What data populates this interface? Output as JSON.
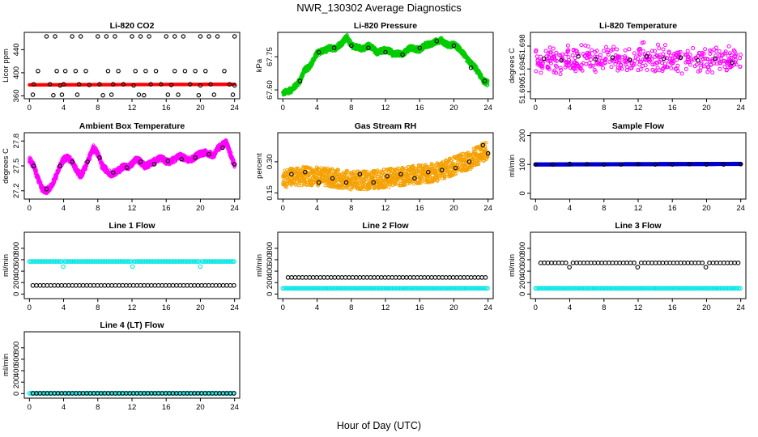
{
  "figure": {
    "title": "NWR_130302  Average Diagnostics",
    "xlabel": "Hour of Day (UTC)"
  },
  "chart_data": [
    {
      "id": "co2",
      "type": "scatter",
      "title": "Li-820 CO2",
      "ylabel": "Licor ppm",
      "x_ticks": [
        0,
        4,
        8,
        12,
        16,
        20,
        24
      ],
      "y_ticks": [
        360,
        400,
        440
      ],
      "xlim": [
        -0.6,
        24.6
      ],
      "ylim": [
        355,
        470
      ],
      "series": [
        {
          "kind": "band",
          "color": "#ff0000",
          "x": [
            0,
            24
          ],
          "y": [
            379,
            380
          ],
          "thickness": 3
        },
        {
          "kind": "points",
          "marker": "circle",
          "color": "#000000",
          "x": [
            2,
            3,
            5,
            6,
            8,
            9,
            10,
            12,
            13,
            14,
            16,
            17,
            18,
            20,
            21,
            22,
            24
          ],
          "y": [
            463,
            463,
            463,
            463,
            463,
            463,
            463,
            463,
            463,
            463,
            463,
            463,
            463,
            463,
            463,
            463,
            463
          ]
        },
        {
          "kind": "points",
          "marker": "circle",
          "color": "#000000",
          "x": [
            1,
            3.2,
            4.2,
            5.4,
            6.6,
            9.2,
            10.4,
            12.4,
            13.6,
            14.8,
            17,
            18.2,
            19.4,
            20.6,
            22.8
          ],
          "y": [
            403,
            403,
            403,
            403,
            403,
            403,
            403,
            403,
            403,
            403,
            403,
            403,
            403,
            403,
            403
          ]
        },
        {
          "kind": "points",
          "marker": "circle",
          "color": "#000000",
          "x": [
            0.5,
            2.4,
            3.6,
            4,
            5.8,
            7,
            8.2,
            9.8,
            11,
            12.2,
            14.2,
            15.4,
            16.6,
            18.8,
            20,
            21.2,
            23.4,
            24
          ],
          "y": [
            380,
            380,
            378,
            380,
            380,
            379,
            380,
            380,
            380,
            378,
            380,
            380,
            379,
            380,
            378,
            380,
            380,
            378
          ]
        },
        {
          "kind": "points",
          "marker": "circle",
          "color": "#000000",
          "x": [
            0.4,
            2.8,
            3.8,
            5.6,
            8.6,
            9.6,
            12.8,
            13.4,
            16.2,
            17.4,
            19.8,
            21.6,
            23.8
          ],
          "y": [
            362,
            361,
            362,
            362,
            361,
            362,
            362,
            361,
            362,
            362,
            361,
            362,
            362
          ]
        }
      ]
    },
    {
      "id": "pressure",
      "type": "scatter",
      "title": "Li-820 Pressure",
      "ylabel": "kPa",
      "x_ticks": [
        0,
        4,
        8,
        12,
        16,
        20,
        24
      ],
      "y_ticks": [
        67.6,
        67.75
      ],
      "xlim": [
        -0.6,
        24.6
      ],
      "ylim": [
        67.56,
        67.86
      ],
      "series": [
        {
          "kind": "trace",
          "color": "#00cc00",
          "jitter": 0.012,
          "x": [
            0,
            1,
            1.5,
            2,
            2.5,
            3,
            3.5,
            4,
            4.5,
            5,
            5.5,
            6,
            6.5,
            7,
            7.5,
            8,
            8.5,
            9,
            9.5,
            10,
            10.5,
            11,
            11.5,
            12,
            12.5,
            13,
            13.5,
            14,
            14.5,
            15,
            15.5,
            16,
            16.5,
            17,
            17.5,
            18,
            18.5,
            19,
            19.5,
            20,
            20.5,
            21,
            21.5,
            22,
            22.5,
            23,
            23.5,
            24
          ],
          "y": [
            67.585,
            67.6,
            67.62,
            67.64,
            67.69,
            67.7,
            67.73,
            67.765,
            67.775,
            67.78,
            67.79,
            67.785,
            67.8,
            67.815,
            67.84,
            67.8,
            67.795,
            67.79,
            67.785,
            67.8,
            67.79,
            67.77,
            67.775,
            67.78,
            67.775,
            67.76,
            67.765,
            67.76,
            67.78,
            67.79,
            67.785,
            67.78,
            67.8,
            67.805,
            67.81,
            67.82,
            67.825,
            67.81,
            67.8,
            67.805,
            67.79,
            67.77,
            67.74,
            67.72,
            67.7,
            67.67,
            67.64,
            67.63
          ]
        },
        {
          "kind": "points",
          "marker": "circle",
          "color": "#000000",
          "x": [
            2,
            4.2,
            6,
            8,
            10,
            12,
            14,
            16,
            18,
            20,
            22,
            23.6
          ],
          "y": [
            67.64,
            67.77,
            67.79,
            67.8,
            67.79,
            67.77,
            67.76,
            67.79,
            67.82,
            67.8,
            67.7,
            67.64
          ]
        }
      ]
    },
    {
      "id": "temperature",
      "type": "scatter",
      "title": "Li-820 Temperature",
      "ylabel": "degrees C",
      "x_ticks": [
        0,
        4,
        8,
        12,
        16,
        20,
        24
      ],
      "y_ticks": [
        51.69,
        51.694,
        51.698
      ],
      "xlim": [
        -0.6,
        24.6
      ],
      "ylim": [
        51.6888,
        51.7004
      ],
      "series": [
        {
          "kind": "cloud",
          "color": "#ff00ff",
          "marker": "circle",
          "x": [
            0,
            24
          ],
          "center": 51.6956,
          "spread": 0.0035,
          "count": 420
        },
        {
          "kind": "points",
          "marker": "circle",
          "color": "#000000",
          "x": [
            1,
            3,
            5,
            7,
            9,
            11,
            13,
            15,
            17,
            19,
            21,
            23
          ],
          "y": [
            51.6958,
            51.6955,
            51.6962,
            51.6957,
            51.696,
            51.6956,
            51.6962,
            51.6958,
            51.696,
            51.6955,
            51.6958,
            51.6951
          ]
        }
      ]
    },
    {
      "id": "ambient",
      "type": "scatter",
      "title": "Ambient Box Temperature",
      "ylabel": "degrees C",
      "x_ticks": [
        0,
        4,
        8,
        12,
        16,
        20,
        24
      ],
      "y_ticks": [
        27.2,
        27.5,
        27.8
      ],
      "xlim": [
        -0.6,
        24.6
      ],
      "ylim": [
        27.1,
        27.9
      ],
      "series": [
        {
          "kind": "trace",
          "color": "#ff00ff",
          "jitter": 0.035,
          "x": [
            0,
            0.5,
            1,
            1.5,
            2,
            2.5,
            3,
            3.5,
            4,
            4.5,
            5,
            5.5,
            6,
            6.5,
            7,
            7.5,
            8,
            8.5,
            9,
            9.5,
            10,
            10.5,
            11,
            11.5,
            12,
            12.5,
            13,
            13.5,
            14,
            14.5,
            15,
            15.5,
            16,
            16.5,
            17,
            17.5,
            18,
            18.5,
            19,
            19.5,
            20,
            20.5,
            21,
            21.5,
            22,
            22.5,
            23,
            23.5,
            24
          ],
          "y": [
            27.58,
            27.5,
            27.35,
            27.22,
            27.2,
            27.25,
            27.35,
            27.48,
            27.58,
            27.6,
            27.55,
            27.45,
            27.38,
            27.48,
            27.6,
            27.72,
            27.65,
            27.5,
            27.45,
            27.4,
            27.42,
            27.45,
            27.5,
            27.48,
            27.52,
            27.58,
            27.55,
            27.5,
            27.52,
            27.55,
            27.58,
            27.6,
            27.55,
            27.55,
            27.58,
            27.62,
            27.6,
            27.58,
            27.58,
            27.62,
            27.65,
            27.66,
            27.65,
            27.62,
            27.7,
            27.75,
            27.78,
            27.65,
            27.5
          ]
        },
        {
          "kind": "points",
          "marker": "circle",
          "color": "#000000",
          "x": [
            0.5,
            2,
            3.6,
            5,
            6.8,
            8.2,
            9.8,
            11.4,
            13,
            14.6,
            16.2,
            17.8,
            19.4,
            21,
            22.6,
            24
          ],
          "y": [
            27.5,
            27.22,
            27.5,
            27.55,
            27.55,
            27.6,
            27.42,
            27.48,
            27.55,
            27.52,
            27.56,
            27.58,
            27.6,
            27.64,
            27.72,
            27.52
          ]
        }
      ]
    },
    {
      "id": "rh",
      "type": "scatter",
      "title": "Gas Stream RH",
      "ylabel": "percent",
      "x_ticks": [
        0,
        4,
        8,
        12,
        16,
        20,
        24
      ],
      "y_ticks": [
        0.15,
        0.3
      ],
      "xlim": [
        -0.6,
        24.6
      ],
      "ylim": [
        0.12,
        0.44
      ],
      "series": [
        {
          "kind": "trace",
          "color": "#f5a000",
          "jitter": 0.045,
          "x": [
            0,
            2,
            4,
            6,
            8,
            10,
            12,
            14,
            16,
            18,
            20,
            22,
            24
          ],
          "y": [
            0.22,
            0.23,
            0.23,
            0.22,
            0.21,
            0.21,
            0.22,
            0.23,
            0.24,
            0.25,
            0.28,
            0.31,
            0.36
          ]
        },
        {
          "kind": "points",
          "marker": "circle",
          "color": "#000000",
          "x": [
            1,
            2.6,
            4.2,
            5.8,
            7.4,
            9,
            10.6,
            12.2,
            13.8,
            15.4,
            17,
            18.6,
            20.2,
            21.8,
            23.4,
            24
          ],
          "y": [
            0.24,
            0.25,
            0.2,
            0.22,
            0.2,
            0.24,
            0.2,
            0.23,
            0.24,
            0.22,
            0.25,
            0.26,
            0.27,
            0.3,
            0.38,
            0.34
          ]
        }
      ]
    },
    {
      "id": "sample_flow",
      "type": "scatter",
      "title": "Sample Flow",
      "ylabel": "ml/min",
      "x_ticks": [
        0,
        4,
        8,
        12,
        16,
        20,
        24
      ],
      "y_ticks": [
        0,
        100,
        200
      ],
      "xlim": [
        -0.6,
        24.6
      ],
      "ylim": [
        -20,
        210
      ],
      "series": [
        {
          "kind": "band",
          "color": "#0000cc",
          "x": [
            0,
            24
          ],
          "y": [
            100,
            102
          ],
          "thickness": 4
        },
        {
          "kind": "points",
          "marker": "circle",
          "color": "#000000",
          "x": [
            0,
            2,
            4,
            6,
            8,
            10,
            12,
            14,
            16,
            18,
            20,
            22,
            24
          ],
          "y": [
            100,
            100,
            102,
            101,
            100,
            100,
            101,
            100,
            100,
            101,
            100,
            100,
            101
          ]
        }
      ]
    },
    {
      "id": "line1",
      "type": "scatter",
      "title": "Line 1 Flow",
      "ylabel": "ml/min",
      "x_ticks": [
        0,
        4,
        8,
        12,
        16,
        20,
        24
      ],
      "y_ticks": [
        0,
        200,
        400,
        600,
        800
      ],
      "xlim": [
        -0.6,
        24.6
      ],
      "ylim": [
        -80,
        1080
      ],
      "series": [
        {
          "kind": "dense",
          "color": "#00e5e5",
          "x": [
            0,
            24
          ],
          "y": 570,
          "step": 0.18,
          "dips": [
            4,
            12,
            20
          ],
          "dip_value": 480
        },
        {
          "kind": "dense",
          "color": "#000000",
          "x": [
            0.4,
            24
          ],
          "y": 150,
          "step": 0.42,
          "dips": [],
          "dip_value": 150
        }
      ]
    },
    {
      "id": "line2",
      "type": "scatter",
      "title": "Line 2 Flow",
      "ylabel": "ml/min",
      "x_ticks": [
        0,
        4,
        8,
        12,
        16,
        20,
        24
      ],
      "y_ticks": [
        0,
        200,
        400,
        600,
        800
      ],
      "xlim": [
        -0.6,
        24.6
      ],
      "ylim": [
        -80,
        1080
      ],
      "series": [
        {
          "kind": "dense",
          "color": "#00e5e5",
          "x": [
            0,
            24
          ],
          "y": 100,
          "step": 0.18,
          "dips": [],
          "dip_value": 100
        },
        {
          "kind": "dense",
          "color": "#000000",
          "x": [
            0.6,
            24
          ],
          "y": 290,
          "step": 0.42,
          "dips": [],
          "dip_value": 290
        },
        {
          "kind": "points",
          "marker": "circle",
          "color": "#00e5e5",
          "x": [
            0
          ],
          "y": 290
        }
      ]
    },
    {
      "id": "line3",
      "type": "scatter",
      "title": "Line 3 Flow",
      "ylabel": "ml/min",
      "x_ticks": [
        0,
        4,
        8,
        12,
        16,
        20,
        24
      ],
      "y_ticks": [
        0,
        200,
        400,
        600,
        800
      ],
      "xlim": [
        -0.6,
        24.6
      ],
      "ylim": [
        -80,
        1080
      ],
      "series": [
        {
          "kind": "dense",
          "color": "#00e5e5",
          "x": [
            0,
            24
          ],
          "y": 100,
          "step": 0.18,
          "dips": [],
          "dip_value": 100
        },
        {
          "kind": "dense",
          "color": "#000000",
          "x": [
            0.6,
            24
          ],
          "y": 545,
          "step": 0.42,
          "dips": [
            4,
            12,
            20
          ],
          "dip_value": 470
        },
        {
          "kind": "points",
          "marker": "circle",
          "color": "#00e5e5",
          "x": [
            0
          ],
          "y": 540
        }
      ]
    },
    {
      "id": "line4",
      "type": "scatter",
      "title": "Line 4 (LT) Flow",
      "ylabel": "ml/min",
      "x_ticks": [
        0,
        4,
        8,
        12,
        16,
        20,
        24
      ],
      "y_ticks": [
        0,
        200,
        400,
        600,
        800
      ],
      "xlim": [
        -0.6,
        24.6
      ],
      "ylim": [
        -80,
        1080
      ],
      "series": [
        {
          "kind": "dense",
          "color": "#00e5e5",
          "x": [
            0,
            24
          ],
          "y": 5,
          "step": 0.18,
          "dips": [],
          "dip_value": 5
        },
        {
          "kind": "dense",
          "color": "#000000",
          "x": [
            0.4,
            24
          ],
          "y": 5,
          "step": 0.42,
          "dips": [],
          "dip_value": 5
        },
        {
          "kind": "points",
          "marker": "circle",
          "color": "#00e5e5",
          "x": [
            4,
            12,
            20
          ],
          "y": 100
        }
      ]
    }
  ]
}
